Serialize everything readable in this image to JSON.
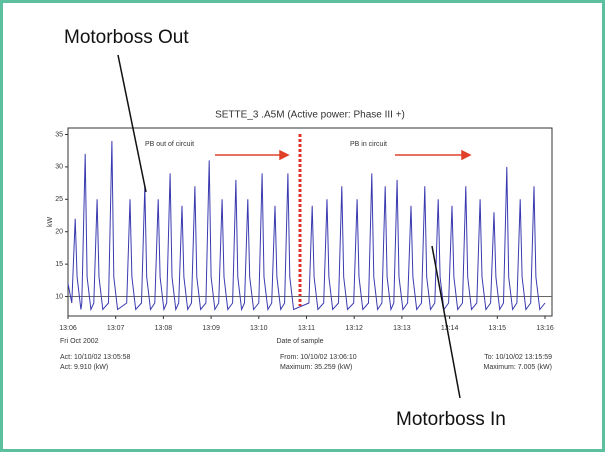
{
  "annotations": {
    "motorboss_out": "Motorboss Out",
    "motorboss_in": "Motorboss In"
  },
  "chart_data": {
    "type": "line",
    "title": "SETTE_3 .A5M (Active power: Phase III +)",
    "ylabel": "kW",
    "xlabel": "Date of sample",
    "date_label": "Fri Oct 2002",
    "notes": [
      "PB out of circuit",
      "PB in circuit"
    ],
    "footer": [
      "Act: 10/10/02 13:05:58",
      "Act: 9.910 (kW)",
      "From: 10/10/02 13:06:10",
      "Maximum: 35.259 (kW)",
      "To: 10/10/02 13:15:59",
      "Maximum: 7.005 (kW)"
    ],
    "color": "#3a3ab0",
    "xlim": [
      786,
      796
    ],
    "xticks": [
      {
        "value": 786,
        "label": "13:06"
      },
      {
        "value": 787,
        "label": "13:07"
      },
      {
        "value": 788,
        "label": "13:08"
      },
      {
        "value": 789,
        "label": "13:09"
      },
      {
        "value": 790,
        "label": "13:10"
      },
      {
        "value": 791,
        "label": "13:11"
      },
      {
        "value": 792,
        "label": "13:12"
      },
      {
        "value": 793,
        "label": "13:13"
      },
      {
        "value": 794,
        "label": "13:14"
      },
      {
        "value": 795,
        "label": "13:15"
      },
      {
        "value": 796,
        "label": "13:16"
      }
    ],
    "ylim": [
      7,
      36
    ],
    "yticks": [
      10,
      15,
      20,
      25,
      30,
      35
    ],
    "reference_line": 10,
    "x": [
      786.0,
      786.08,
      786.15,
      786.19,
      786.27,
      786.29,
      786.36,
      786.4,
      786.48,
      786.54,
      786.61,
      786.65,
      786.73,
      786.85,
      786.92,
      786.96,
      787.04,
      787.23,
      787.3,
      787.34,
      787.42,
      787.54,
      787.61,
      787.65,
      787.73,
      787.82,
      787.89,
      787.93,
      788.01,
      788.07,
      788.14,
      788.18,
      788.26,
      788.32,
      788.39,
      788.43,
      788.51,
      788.59,
      788.66,
      788.7,
      788.78,
      788.89,
      788.96,
      789.0,
      789.08,
      789.16,
      789.23,
      789.27,
      789.35,
      789.45,
      789.52,
      789.56,
      789.64,
      789.7,
      789.77,
      789.81,
      789.89,
      790.0,
      790.07,
      790.11,
      790.19,
      790.27,
      790.34,
      790.38,
      790.46,
      790.54,
      790.61,
      790.65,
      790.73,
      791.05,
      791.12,
      791.16,
      791.24,
      791.36,
      791.43,
      791.47,
      791.55,
      791.67,
      791.74,
      791.78,
      791.86,
      791.99,
      792.06,
      792.1,
      792.18,
      792.3,
      792.37,
      792.41,
      792.49,
      792.58,
      792.65,
      792.69,
      792.77,
      792.83,
      792.9,
      792.94,
      793.02,
      793.12,
      793.19,
      793.23,
      793.31,
      793.41,
      793.48,
      793.52,
      793.6,
      793.69,
      793.76,
      793.8,
      793.88,
      793.98,
      794.05,
      794.09,
      794.17,
      794.27,
      794.34,
      794.38,
      794.46,
      794.57,
      794.64,
      794.68,
      794.76,
      794.86,
      794.93,
      794.97,
      795.05,
      795.13,
      795.2,
      795.24,
      795.32,
      795.41,
      795.48,
      795.52,
      795.6,
      795.7,
      795.77,
      795.81,
      795.89,
      796.0
    ],
    "values": [
      12,
      9,
      22,
      13,
      8,
      9,
      32,
      13,
      8,
      9,
      25,
      13,
      8,
      9,
      34,
      13,
      8,
      9,
      25,
      13,
      8,
      9,
      27,
      13,
      8,
      9,
      25,
      13,
      8,
      9,
      29,
      13,
      8,
      9,
      24,
      13,
      8,
      9,
      27,
      13,
      8,
      9,
      31,
      13,
      8,
      9,
      25,
      13,
      8,
      9,
      28,
      13,
      8,
      9,
      25,
      13,
      8,
      9,
      29,
      13,
      8,
      9,
      24,
      13,
      8,
      9,
      29,
      13,
      8,
      9,
      24,
      13,
      8,
      9,
      25,
      13,
      8,
      9,
      27,
      13,
      8,
      9,
      25,
      13,
      8,
      9,
      29,
      13,
      8,
      9,
      27,
      13,
      8,
      9,
      28,
      13,
      8,
      9,
      24,
      13,
      8,
      9,
      27,
      13,
      8,
      9,
      25,
      13,
      8,
      9,
      24,
      13,
      8,
      9,
      27,
      13,
      8,
      9,
      25,
      13,
      8,
      9,
      23,
      13,
      8,
      9,
      30,
      13,
      8,
      9,
      25,
      13,
      8,
      9,
      27,
      13,
      8,
      9
    ]
  }
}
